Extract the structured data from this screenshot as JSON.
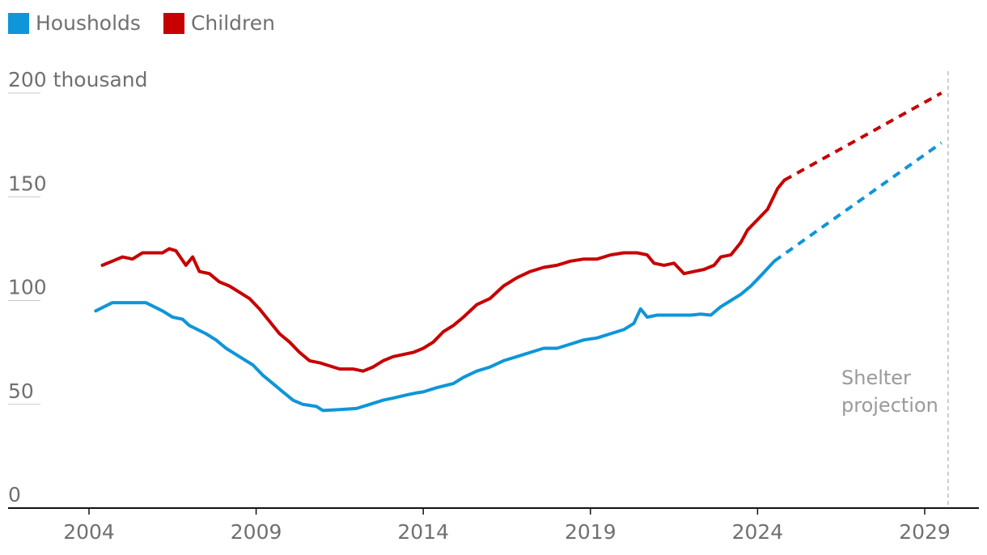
{
  "chart_data": {
    "type": "line",
    "title": "",
    "xlabel": "",
    "ylabel": "",
    "ylim": [
      0,
      200
    ],
    "xlim": [
      2003,
      2030.3
    ],
    "y_ticks": [
      {
        "value": 200,
        "label": "200 thousand"
      },
      {
        "value": 150,
        "label": "150"
      },
      {
        "value": 100,
        "label": "100"
      },
      {
        "value": 50,
        "label": "50"
      },
      {
        "value": 0,
        "label": "0"
      }
    ],
    "x_ticks": [
      {
        "value": 2004,
        "label": "2004"
      },
      {
        "value": 2009,
        "label": "2009"
      },
      {
        "value": 2014,
        "label": "2014"
      },
      {
        "value": 2019,
        "label": "2019"
      },
      {
        "value": 2024,
        "label": "2024"
      },
      {
        "value": 2029,
        "label": "2029"
      }
    ],
    "legend_placement": "top-left",
    "grid": false,
    "annotation": {
      "lines": [
        "Shelter",
        "projection"
      ],
      "x": 2029.7
    },
    "series": [
      {
        "name": "Housholds",
        "color": "#0f95d9",
        "points": [
          [
            2004.2,
            95
          ],
          [
            2004.7,
            99
          ],
          [
            2005.2,
            99
          ],
          [
            2005.7,
            99
          ],
          [
            2006.2,
            95
          ],
          [
            2006.5,
            92
          ],
          [
            2006.8,
            91
          ],
          [
            2007.0,
            88
          ],
          [
            2007.5,
            84
          ],
          [
            2007.8,
            81
          ],
          [
            2008.1,
            77
          ],
          [
            2008.4,
            74
          ],
          [
            2008.7,
            71
          ],
          [
            2008.9,
            69
          ],
          [
            2009.2,
            64
          ],
          [
            2009.5,
            60
          ],
          [
            2009.8,
            56
          ],
          [
            2010.1,
            52
          ],
          [
            2010.4,
            50
          ],
          [
            2010.8,
            49
          ],
          [
            2011.0,
            47
          ],
          [
            2011.5,
            47.5
          ],
          [
            2012.0,
            48
          ],
          [
            2012.4,
            50
          ],
          [
            2012.8,
            52
          ],
          [
            2013.1,
            53
          ],
          [
            2013.5,
            54.5
          ],
          [
            2013.8,
            55.5
          ],
          [
            2014.0,
            56
          ],
          [
            2014.4,
            58
          ],
          [
            2014.9,
            60
          ],
          [
            2015.2,
            63
          ],
          [
            2015.6,
            66
          ],
          [
            2016.0,
            68
          ],
          [
            2016.4,
            71
          ],
          [
            2016.8,
            73
          ],
          [
            2017.2,
            75
          ],
          [
            2017.6,
            77
          ],
          [
            2018.0,
            77
          ],
          [
            2018.4,
            79
          ],
          [
            2018.8,
            81
          ],
          [
            2019.2,
            82
          ],
          [
            2019.6,
            84
          ],
          [
            2020.0,
            86
          ],
          [
            2020.3,
            89
          ],
          [
            2020.5,
            96
          ],
          [
            2020.7,
            92
          ],
          [
            2021.0,
            93
          ],
          [
            2021.5,
            93
          ],
          [
            2022.0,
            93
          ],
          [
            2022.3,
            93.5
          ],
          [
            2022.6,
            93
          ],
          [
            2022.9,
            97
          ],
          [
            2023.2,
            100
          ],
          [
            2023.5,
            103
          ],
          [
            2023.8,
            107
          ],
          [
            2024.1,
            112
          ],
          [
            2024.5,
            119
          ]
        ],
        "projection": [
          [
            2024.5,
            119
          ],
          [
            2029.5,
            176
          ]
        ]
      },
      {
        "name": "Children",
        "color": "#c70000",
        "points": [
          [
            2004.4,
            117
          ],
          [
            2004.7,
            119
          ],
          [
            2005.0,
            121
          ],
          [
            2005.3,
            120
          ],
          [
            2005.6,
            123
          ],
          [
            2005.9,
            123
          ],
          [
            2006.2,
            123
          ],
          [
            2006.4,
            125
          ],
          [
            2006.6,
            124
          ],
          [
            2006.9,
            117
          ],
          [
            2007.1,
            121
          ],
          [
            2007.3,
            114
          ],
          [
            2007.6,
            113
          ],
          [
            2007.9,
            109
          ],
          [
            2008.2,
            107
          ],
          [
            2008.5,
            104
          ],
          [
            2008.8,
            101
          ],
          [
            2009.1,
            96
          ],
          [
            2009.4,
            90
          ],
          [
            2009.7,
            84
          ],
          [
            2010.0,
            80
          ],
          [
            2010.3,
            75
          ],
          [
            2010.6,
            71
          ],
          [
            2010.9,
            70
          ],
          [
            2011.1,
            69
          ],
          [
            2011.5,
            67
          ],
          [
            2011.9,
            67
          ],
          [
            2012.2,
            66
          ],
          [
            2012.5,
            68
          ],
          [
            2012.8,
            71
          ],
          [
            2013.1,
            73
          ],
          [
            2013.4,
            74
          ],
          [
            2013.7,
            75
          ],
          [
            2014.0,
            77
          ],
          [
            2014.3,
            80
          ],
          [
            2014.6,
            85
          ],
          [
            2014.9,
            88
          ],
          [
            2015.2,
            92
          ],
          [
            2015.6,
            98
          ],
          [
            2016.0,
            101
          ],
          [
            2016.4,
            107
          ],
          [
            2016.8,
            111
          ],
          [
            2017.2,
            114
          ],
          [
            2017.6,
            116
          ],
          [
            2018.0,
            117
          ],
          [
            2018.4,
            119
          ],
          [
            2018.8,
            120
          ],
          [
            2019.2,
            120
          ],
          [
            2019.6,
            122
          ],
          [
            2020.0,
            123
          ],
          [
            2020.4,
            123
          ],
          [
            2020.7,
            122
          ],
          [
            2020.9,
            118
          ],
          [
            2021.2,
            117
          ],
          [
            2021.5,
            118
          ],
          [
            2021.8,
            113
          ],
          [
            2022.1,
            114
          ],
          [
            2022.4,
            115
          ],
          [
            2022.7,
            117
          ],
          [
            2022.9,
            121
          ],
          [
            2023.2,
            122
          ],
          [
            2023.5,
            128
          ],
          [
            2023.7,
            134
          ],
          [
            2024.0,
            139
          ],
          [
            2024.3,
            144
          ],
          [
            2024.6,
            154
          ],
          [
            2024.8,
            158
          ]
        ],
        "projection": [
          [
            2024.8,
            158
          ],
          [
            2029.5,
            200
          ]
        ]
      }
    ]
  }
}
